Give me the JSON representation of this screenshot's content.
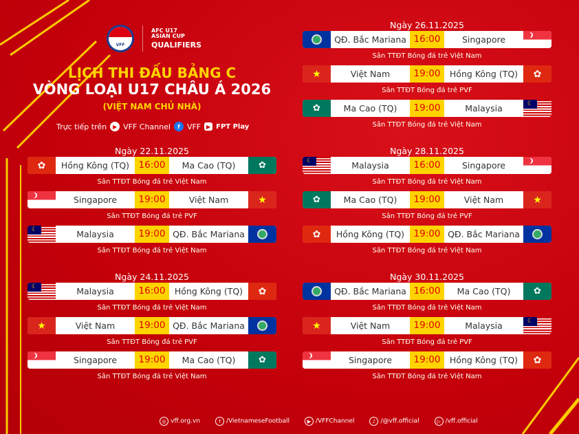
{
  "header": {
    "vff_logo": "VFF",
    "afc_logo_line1": "AFC U17",
    "afc_logo_line2": "ASIAN CUP",
    "afc_logo_qualifiers": "QUALIFIERS",
    "title_line1": "LỊCH THI ĐẤU BẢNG C",
    "title_line2": "VÒNG LOẠI U17 CHÂU Á 2026",
    "subtitle": "(VIỆT NAM CHỦ NHÀ)",
    "live_label": "Trực tiếp trên",
    "channels": [
      {
        "name": "VFF Channel",
        "icon": "youtube-icon"
      },
      {
        "name": "VFF",
        "icon": "facebook-icon"
      },
      {
        "name": "FPT Play",
        "icon": "fpt-play-icon"
      }
    ]
  },
  "colors": {
    "background": "#c8000a",
    "accent": "#ffd400",
    "time_text": "#dd0000"
  },
  "days": [
    {
      "date": "Ngày 22.11.2025",
      "matches": [
        {
          "home": "Hồng Kông (TQ)",
          "home_flag": "hk",
          "time": "16:00",
          "away": "Ma Cao (TQ)",
          "away_flag": "mo",
          "venue": "Sân TTĐT Bóng đá trẻ Việt Nam"
        },
        {
          "home": "Singapore",
          "home_flag": "sg",
          "time": "19:00",
          "away": "Việt Nam",
          "away_flag": "vn",
          "venue": "Sân TTĐT Bóng đá trẻ PVF"
        },
        {
          "home": "Malaysia",
          "home_flag": "my",
          "time": "19:00",
          "away": "QĐ. Bắc Mariana",
          "away_flag": "mp",
          "venue": "Sân TTĐT Bóng đá trẻ Việt Nam"
        }
      ]
    },
    {
      "date": "Ngày 24.11.2025",
      "matches": [
        {
          "home": "Malaysia",
          "home_flag": "my",
          "time": "16:00",
          "away": "Hồng Kông (TQ)",
          "away_flag": "hk",
          "venue": "Sân TTĐT Bóng đá trẻ Việt Nam"
        },
        {
          "home": "Việt Nam",
          "home_flag": "vn",
          "time": "19:00",
          "away": "QĐ. Bắc Mariana",
          "away_flag": "mp",
          "venue": "Sân TTĐT Bóng đá trẻ PVF"
        },
        {
          "home": "Singapore",
          "home_flag": "sg",
          "time": "19:00",
          "away": "Ma Cao (TQ)",
          "away_flag": "mo",
          "venue": "Sân TTĐT Bóng đá trẻ Việt Nam"
        }
      ]
    },
    {
      "date": "Ngày 26.11.2025",
      "matches": [
        {
          "home": "QĐ. Bắc Mariana",
          "home_flag": "mp",
          "time": "16:00",
          "away": "Singapore",
          "away_flag": "sg",
          "venue": "Sân TTĐT Bóng đá trẻ Việt Nam"
        },
        {
          "home": "Việt Nam",
          "home_flag": "vn",
          "time": "19:00",
          "away": "Hồng Kông (TQ)",
          "away_flag": "hk",
          "venue": "Sân TTĐT Bóng đá trẻ PVF"
        },
        {
          "home": "Ma Cao (TQ)",
          "home_flag": "mo",
          "time": "19:00",
          "away": "Malaysia",
          "away_flag": "my",
          "venue": "Sân TTĐT Bóng đá trẻ Việt Nam"
        }
      ]
    },
    {
      "date": "Ngày 28.11.2025",
      "matches": [
        {
          "home": "Malaysia",
          "home_flag": "my",
          "time": "16:00",
          "away": "Singapore",
          "away_flag": "sg",
          "venue": "Sân TTĐT Bóng đá trẻ Việt Nam"
        },
        {
          "home": "Ma Cao (TQ)",
          "home_flag": "mo",
          "time": "19:00",
          "away": "Việt Nam",
          "away_flag": "vn",
          "venue": "Sân TTĐT Bóng đá trẻ PVF"
        },
        {
          "home": "Hồng Kông (TQ)",
          "home_flag": "hk",
          "time": "19:00",
          "away": "QĐ. Bắc Mariana",
          "away_flag": "mp",
          "venue": "Sân TTĐT Bóng đá trẻ Việt Nam"
        }
      ]
    },
    {
      "date": "Ngày 30.11.2025",
      "matches": [
        {
          "home": "QĐ. Bắc Mariana",
          "home_flag": "mp",
          "time": "16:00",
          "away": "Ma Cao (TQ)",
          "away_flag": "mo",
          "venue": "Sân TTĐT Bóng đá trẻ Việt Nam"
        },
        {
          "home": "Việt Nam",
          "home_flag": "vn",
          "time": "19:00",
          "away": "Malaysia",
          "away_flag": "my",
          "venue": "Sân TTĐT Bóng đá trẻ PVF"
        },
        {
          "home": "Singapore",
          "home_flag": "sg",
          "time": "19:00",
          "away": "Hồng Kông (TQ)",
          "away_flag": "hk",
          "venue": "Sân TTĐT Bóng đá trẻ Việt Nam"
        }
      ]
    }
  ],
  "footer": [
    {
      "icon": "globe-icon",
      "text": "vff.org.vn"
    },
    {
      "icon": "facebook-icon",
      "text": "/VietnameseFootball"
    },
    {
      "icon": "youtube-icon",
      "text": "/VFFChannel"
    },
    {
      "icon": "tiktok-icon",
      "text": "/@vff.official"
    },
    {
      "icon": "fpt-play-icon",
      "text": "/vff.official"
    }
  ]
}
